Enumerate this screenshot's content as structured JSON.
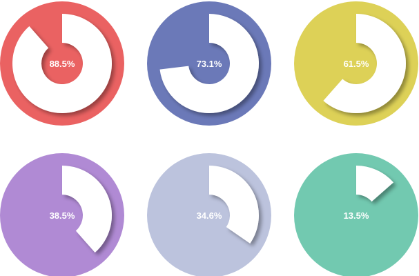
{
  "chart_data": {
    "type": "pie",
    "title": "",
    "charts": [
      {
        "label": "88.5%",
        "value": 88.5,
        "color": "#ea6262"
      },
      {
        "label": "73.1%",
        "value": 73.1,
        "color": "#6b79b8"
      },
      {
        "label": "61.5%",
        "value": 61.5,
        "color": "#ddd157"
      },
      {
        "label": "38.5%",
        "value": 38.5,
        "color": "#b08ad4"
      },
      {
        "label": "34.6%",
        "value": 34.6,
        "color": "#bcc3dd"
      },
      {
        "label": "13.5%",
        "value": 13.5,
        "color": "#72c9b0"
      }
    ]
  }
}
